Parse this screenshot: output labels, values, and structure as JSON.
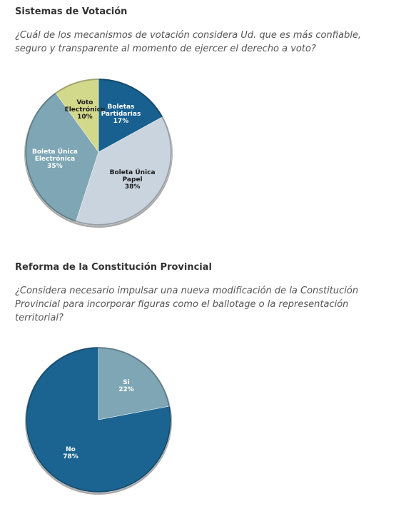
{
  "chart_data": [
    {
      "type": "pie",
      "title": "Sistemas de Votación",
      "subtitle": "¿Cuál de los mecanismos de votación considera Ud. que es más confiable, seguro y transparente al momento de ejercer el derecho a voto?",
      "categories": [
        "Boletas Partidarias",
        "Boleta Única Papel",
        "Boleta Única Electrónica",
        "Voto Electrónico"
      ],
      "values": [
        17,
        38,
        35,
        10
      ],
      "value_labels": [
        "17%",
        "38%",
        "35%",
        "10%"
      ],
      "colors": [
        "#17608f",
        "#c9d4de",
        "#7ea6b4",
        "#d3d98a"
      ]
    },
    {
      "type": "pie",
      "title": "Reforma de la Constitución Provincial",
      "subtitle": "¿Considera necesario impulsar una nueva modificación de la Constitución Provincial para incorporar figuras como el ballotage o la representación territorial?",
      "categories": [
        "Si",
        "No"
      ],
      "values": [
        22,
        78
      ],
      "value_labels": [
        "22%",
        "78%"
      ],
      "colors": [
        "#7ea6b4",
        "#1b6491"
      ]
    }
  ]
}
